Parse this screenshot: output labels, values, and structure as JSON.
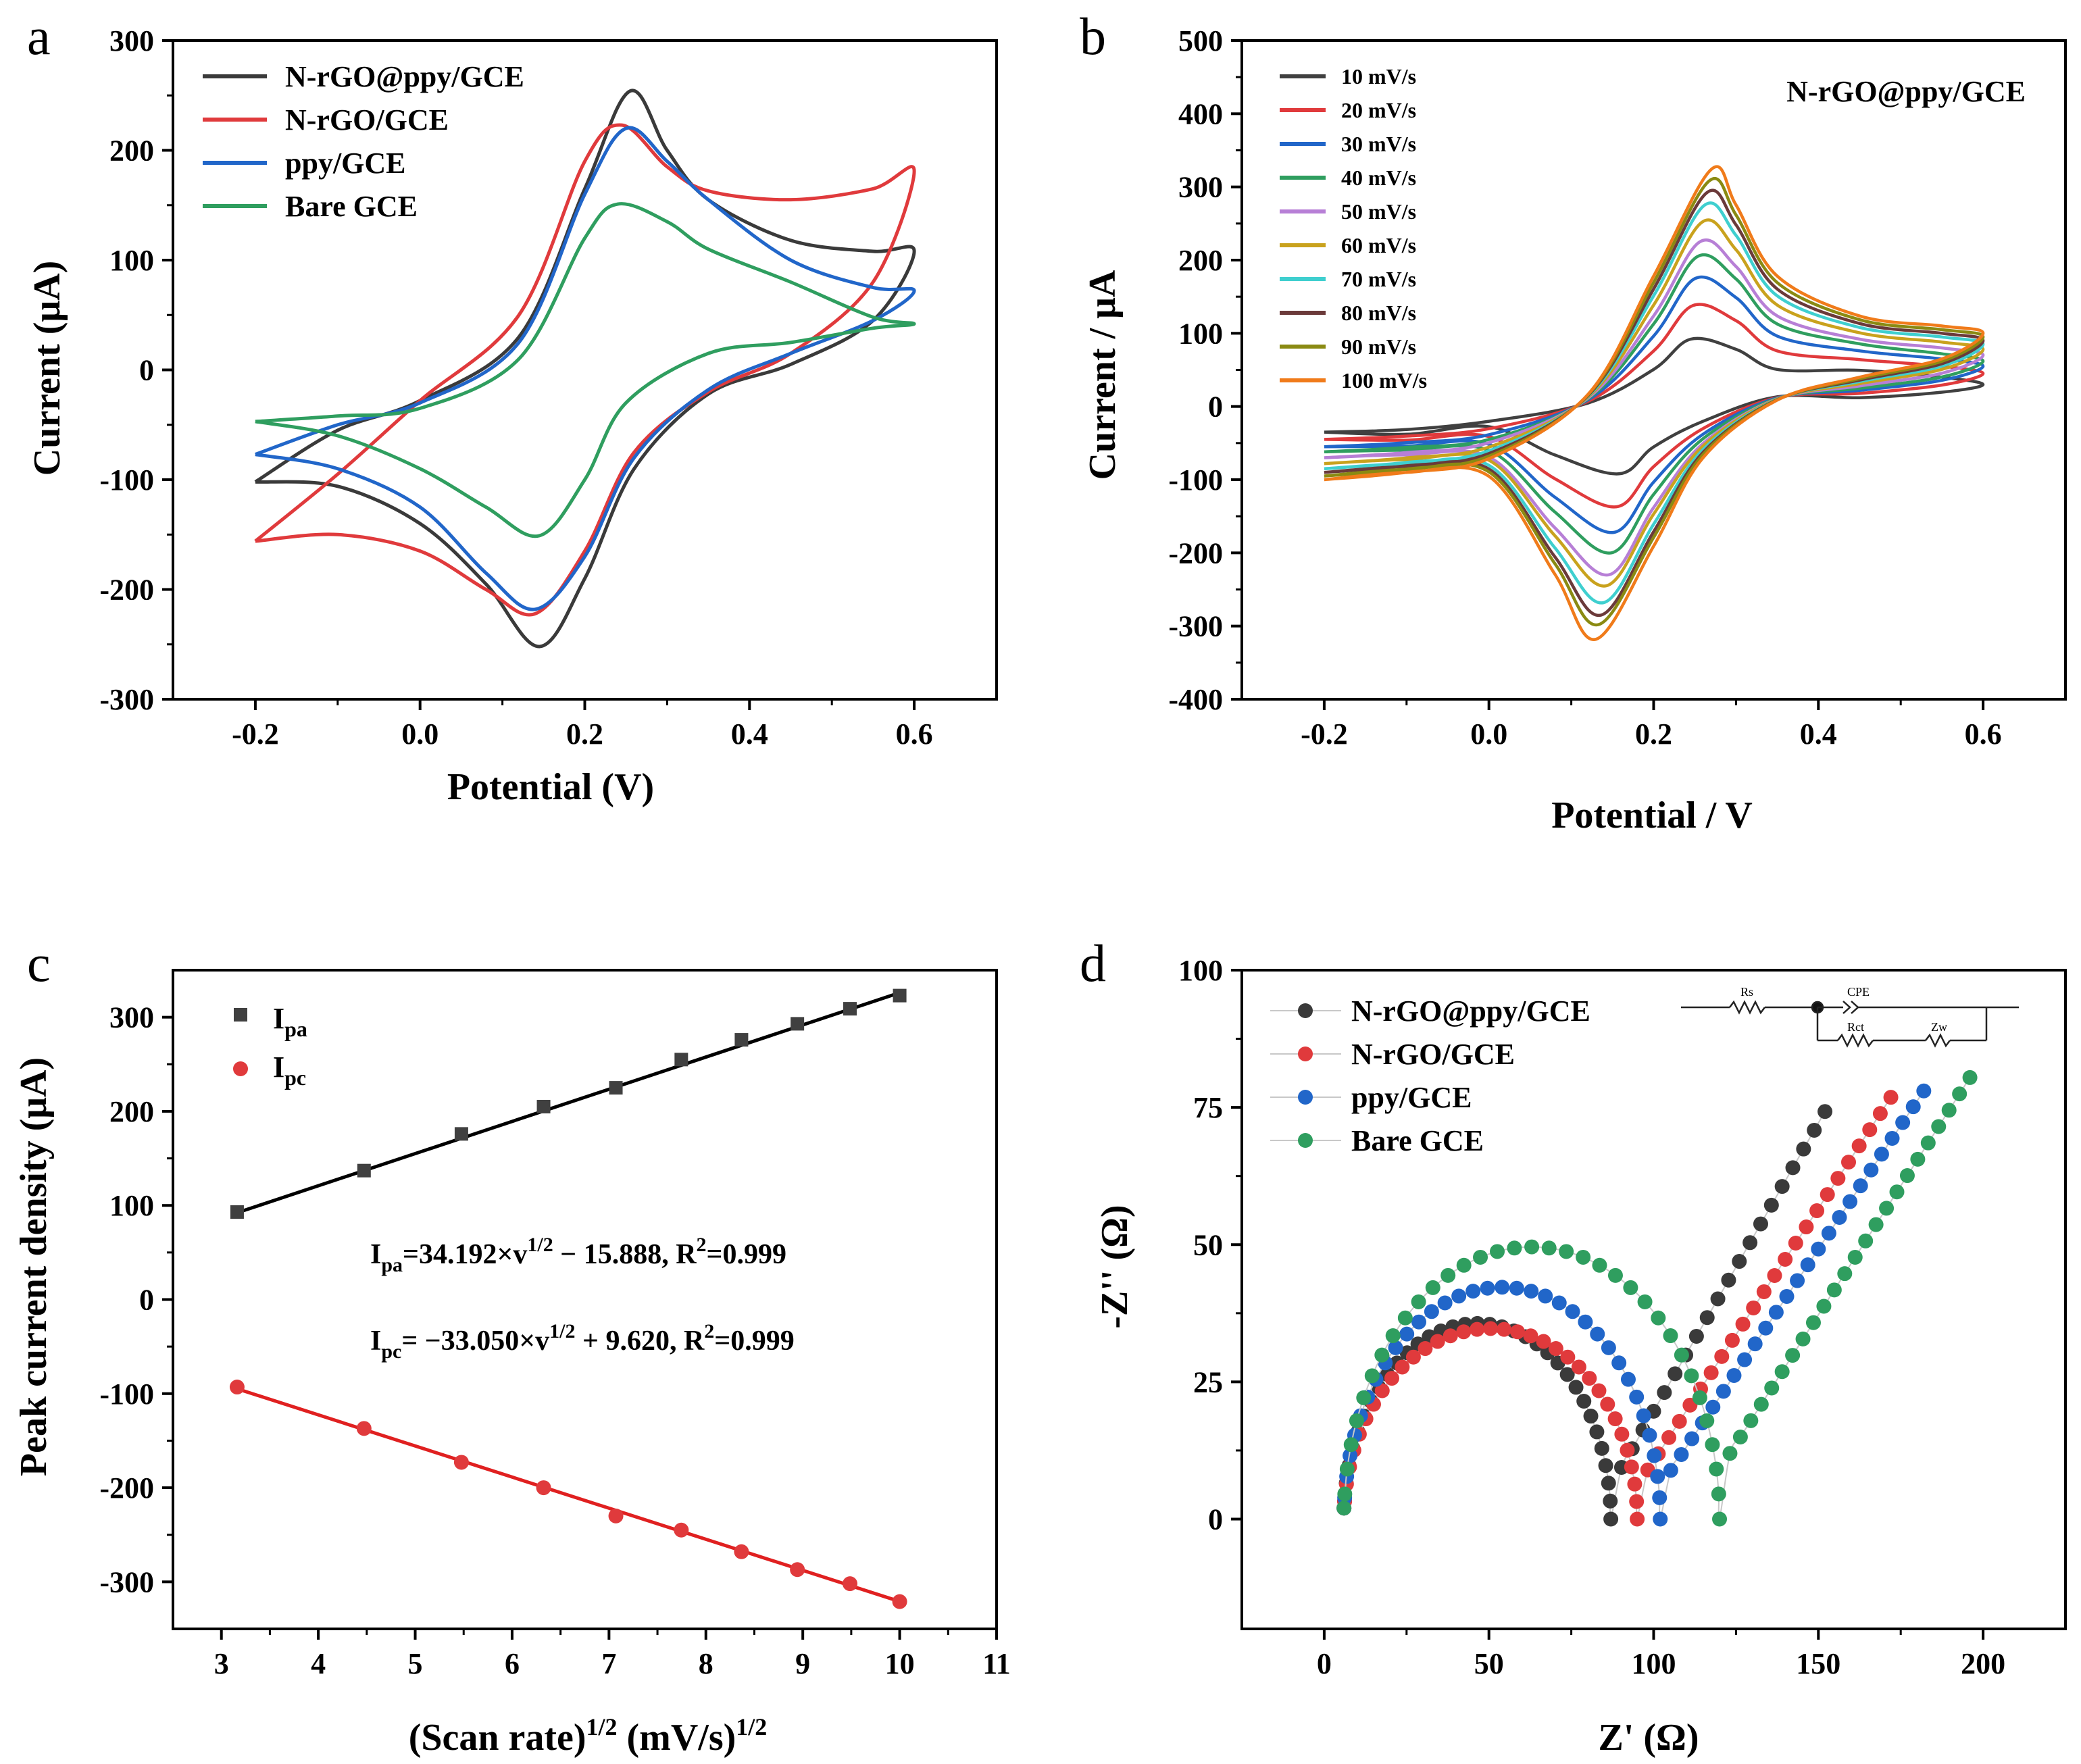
{
  "chart_data": [
    {
      "panel": "a",
      "type": "line",
      "xlabel": "Potential (V)",
      "ylabel": "Current (μA)",
      "xlim": [
        -0.3,
        0.7
      ],
      "ylim": [
        -300,
        300
      ],
      "xticks": [
        -0.2,
        0.0,
        0.2,
        0.4,
        0.6
      ],
      "xtick_labels": [
        "-0.2",
        "0.0",
        "0.2",
        "0.4",
        "0.6"
      ],
      "yticks": [
        -300,
        -200,
        -100,
        0,
        100,
        200,
        300
      ],
      "ytick_labels": [
        "-300",
        "-200",
        "-100",
        "0",
        "100",
        "200",
        "300"
      ],
      "legend": "top-left",
      "series": [
        {
          "name": "N-rGO@ppy/GCE",
          "color": "#3a3a3a",
          "points": [
            [
              -0.2,
              -102
            ],
            [
              -0.1,
              -106
            ],
            [
              0.0,
              -140
            ],
            [
              0.08,
              -195
            ],
            [
              0.145,
              -252
            ],
            [
              0.2,
              -190
            ],
            [
              0.26,
              -90
            ],
            [
              0.35,
              -22
            ],
            [
              0.45,
              5
            ],
            [
              0.55,
              45
            ],
            [
              0.6,
              108
            ],
            [
              0.55,
              108
            ],
            [
              0.45,
              118
            ],
            [
              0.35,
              155
            ],
            [
              0.3,
              200
            ],
            [
              0.255,
              254
            ],
            [
              0.2,
              165
            ],
            [
              0.12,
              30
            ],
            [
              0.0,
              -28
            ],
            [
              -0.1,
              -55
            ],
            [
              -0.2,
              -102
            ]
          ]
        },
        {
          "name": "N-rGO/GCE",
          "color": "#e03a3c",
          "points": [
            [
              -0.2,
              -156
            ],
            [
              -0.1,
              -150
            ],
            [
              0.0,
              -165
            ],
            [
              0.08,
              -200
            ],
            [
              0.14,
              -222
            ],
            [
              0.2,
              -165
            ],
            [
              0.26,
              -75
            ],
            [
              0.35,
              -20
            ],
            [
              0.45,
              15
            ],
            [
              0.55,
              80
            ],
            [
              0.6,
              181
            ],
            [
              0.55,
              165
            ],
            [
              0.45,
              155
            ],
            [
              0.35,
              163
            ],
            [
              0.3,
              185
            ],
            [
              0.245,
              223
            ],
            [
              0.2,
              190
            ],
            [
              0.12,
              50
            ],
            [
              0.0,
              -28
            ],
            [
              -0.1,
              -95
            ],
            [
              -0.2,
              -156
            ]
          ]
        },
        {
          "name": "ppy/GCE",
          "color": "#2166c9",
          "points": [
            [
              -0.2,
              -77
            ],
            [
              -0.1,
              -90
            ],
            [
              0.0,
              -125
            ],
            [
              0.08,
              -185
            ],
            [
              0.14,
              -218
            ],
            [
              0.2,
              -170
            ],
            [
              0.26,
              -80
            ],
            [
              0.35,
              -18
            ],
            [
              0.45,
              15
            ],
            [
              0.55,
              45
            ],
            [
              0.6,
              72
            ],
            [
              0.55,
              75
            ],
            [
              0.45,
              100
            ],
            [
              0.35,
              155
            ],
            [
              0.3,
              190
            ],
            [
              0.25,
              220
            ],
            [
              0.2,
              160
            ],
            [
              0.12,
              25
            ],
            [
              0.0,
              -30
            ],
            [
              -0.1,
              -50
            ],
            [
              -0.2,
              -77
            ]
          ]
        },
        {
          "name": "Bare GCE",
          "color": "#2f9e5f",
          "points": [
            [
              -0.2,
              -47
            ],
            [
              -0.1,
              -60
            ],
            [
              0.0,
              -90
            ],
            [
              0.08,
              -125
            ],
            [
              0.145,
              -151
            ],
            [
              0.2,
              -100
            ],
            [
              0.25,
              -30
            ],
            [
              0.35,
              15
            ],
            [
              0.45,
              25
            ],
            [
              0.55,
              38
            ],
            [
              0.6,
              42
            ],
            [
              0.55,
              48
            ],
            [
              0.45,
              80
            ],
            [
              0.35,
              110
            ],
            [
              0.3,
              135
            ],
            [
              0.24,
              151
            ],
            [
              0.2,
              120
            ],
            [
              0.12,
              10
            ],
            [
              0.0,
              -35
            ],
            [
              -0.1,
              -42
            ],
            [
              -0.2,
              -47
            ]
          ]
        }
      ]
    },
    {
      "panel": "b",
      "type": "line",
      "title": "N-rGO@ppy/GCE",
      "xlabel": "Potential / V",
      "ylabel": "Current / μA",
      "xlim": [
        -0.3,
        0.7
      ],
      "ylim": [
        -400,
        500
      ],
      "xticks": [
        -0.2,
        0.0,
        0.2,
        0.4,
        0.6
      ],
      "xtick_labels": [
        "-0.2",
        "0.0",
        "0.2",
        "0.4",
        "0.6"
      ],
      "yticks": [
        -400,
        -300,
        -200,
        -100,
        0,
        100,
        200,
        300,
        400,
        500
      ],
      "ytick_labels": [
        "-400",
        "-300",
        "-200",
        "-100",
        "0",
        "100",
        "200",
        "300",
        "400",
        "500"
      ],
      "legend": "top-left",
      "scan_rates": [
        10,
        20,
        30,
        40,
        50,
        60,
        70,
        80,
        90,
        100
      ],
      "series": [
        {
          "name": "10 mV/s",
          "color": "#404040",
          "ipa": 92,
          "ipc": -92,
          "start": -35,
          "end": 30
        },
        {
          "name": "20 mV/s",
          "color": "#e03a3c",
          "ipa": 138,
          "ipc": -137,
          "start": -45,
          "end": 45
        },
        {
          "name": "30 mV/s",
          "color": "#2166c9",
          "ipa": 175,
          "ipc": -172,
          "start": -55,
          "end": 55
        },
        {
          "name": "40 mV/s",
          "color": "#2f9e5f",
          "ipa": 205,
          "ipc": -200,
          "start": -62,
          "end": 62
        },
        {
          "name": "50 mV/s",
          "color": "#b77fd6",
          "ipa": 225,
          "ipc": -230,
          "start": -70,
          "end": 70
        },
        {
          "name": "60 mV/s",
          "color": "#c9a21d",
          "ipa": 252,
          "ipc": -245,
          "start": -78,
          "end": 78
        },
        {
          "name": "70 mV/s",
          "color": "#3fcfcf",
          "ipa": 275,
          "ipc": -268,
          "start": -85,
          "end": 85
        },
        {
          "name": "80 mV/s",
          "color": "#6b3a3a",
          "ipa": 292,
          "ipc": -285,
          "start": -90,
          "end": 90
        },
        {
          "name": "90 mV/s",
          "color": "#8a8a12",
          "ipa": 308,
          "ipc": -298,
          "start": -95,
          "end": 95
        },
        {
          "name": "100 mV/s",
          "color": "#f07b1a",
          "ipa": 324,
          "ipc": -318,
          "start": -100,
          "end": 100
        }
      ]
    },
    {
      "panel": "c",
      "type": "scatter",
      "xlabel": "(Scan rate)1/2 (mV/s)1/2",
      "ylabel": "Peak current density (μA)",
      "xlim": [
        2.5,
        11
      ],
      "ylim": [
        -350,
        350
      ],
      "xticks": [
        3,
        4,
        5,
        6,
        7,
        8,
        9,
        10,
        11
      ],
      "xtick_labels": [
        "3",
        "4",
        "5",
        "6",
        "7",
        "8",
        "9",
        "10",
        "11"
      ],
      "yticks": [
        -300,
        -200,
        -100,
        0,
        100,
        200,
        300
      ],
      "ytick_labels": [
        "-300",
        "-200",
        "-100",
        "0",
        "100",
        "200",
        "300"
      ],
      "legend": "top-left",
      "x": [
        3.162,
        4.472,
        5.477,
        6.325,
        7.071,
        7.746,
        8.367,
        8.944,
        9.487,
        10.0
      ],
      "series": [
        {
          "name": "Ipa",
          "color": "#404040",
          "marker": "square",
          "values": [
            93,
            137,
            176,
            205,
            225,
            255,
            276,
            293,
            309,
            323
          ],
          "fit": {
            "slope": 34.192,
            "intercept": -15.888,
            "color": "#000000"
          }
        },
        {
          "name": "Ipc",
          "color": "#e03a3c",
          "marker": "circle",
          "values": [
            -93,
            -137,
            -173,
            -200,
            -230,
            -245,
            -268,
            -287,
            -302,
            -321
          ],
          "fit": {
            "slope": -33.05,
            "intercept": 9.62,
            "color": "#e02020"
          }
        }
      ],
      "annotations": [
        "Ipa=34.192×v1/2 − 15.888, R2=0.999",
        "Ipc= −33.050×v1/2 + 9.620, R2=0.999"
      ]
    },
    {
      "panel": "d",
      "type": "scatter",
      "xlabel": "Z' (Ω)",
      "ylabel": "-Z'' (Ω)",
      "xlim": [
        -25,
        225
      ],
      "ylim": [
        -20,
        100
      ],
      "xticks": [
        0,
        50,
        100,
        150,
        200
      ],
      "xtick_labels": [
        "0",
        "50",
        "100",
        "150",
        "200"
      ],
      "yticks": [
        0,
        25,
        50,
        75,
        100
      ],
      "ytick_labels": [
        "0",
        "25",
        "50",
        "75",
        "100"
      ],
      "legend": "top-left",
      "series": [
        {
          "name": "N-rGO@ppy/GCE",
          "color": "#3a3a3a",
          "rs": 6,
          "rct": 81,
          "sat": 0.88,
          "wslope": 1.05,
          "xend": 152
        },
        {
          "name": "N-rGO/GCE",
          "color": "#e03a3c",
          "rs": 6,
          "rct": 89,
          "sat": 0.78,
          "wslope": 0.92,
          "xend": 172
        },
        {
          "name": "ppy/GCE",
          "color": "#2166c9",
          "rs": 6,
          "rct": 96,
          "sat": 0.88,
          "wslope": 0.9,
          "xend": 182
        },
        {
          "name": "Bare GCE",
          "color": "#2f9e5f",
          "rs": 6,
          "rct": 114,
          "sat": 0.87,
          "wslope": 0.94,
          "xend": 196
        }
      ]
    }
  ],
  "panel_letters": {
    "a": "a",
    "b": "b",
    "c": "c",
    "d": "d"
  },
  "legend_c": {
    "ipa_main": "I",
    "ipa_sub": "pa",
    "ipc_main": "I",
    "ipc_sub": "pc"
  },
  "annotation_c": {
    "ipa_a": "I",
    "ipa_b": "pa",
    "ipa_c": "=34.192×v",
    "ipa_d": "1/2",
    "ipa_e": " − 15.888, R",
    "ipa_f": "2",
    "ipa_g": "=0.999",
    "ipc_a": "I",
    "ipc_b": "pc",
    "ipc_c": "= −33.050×v",
    "ipc_d": "1/2",
    "ipc_e": " + 9.620, R",
    "ipc_f": "2",
    "ipc_g": "=0.999"
  },
  "xlabel_c": {
    "a": "(Scan rate)",
    "b": "1/2",
    "c": " (mV/s)",
    "d": "1/2"
  },
  "circuit": {
    "rs": "Rs",
    "cpe": "CPE",
    "rct": "Rct",
    "zw": "Zw"
  }
}
